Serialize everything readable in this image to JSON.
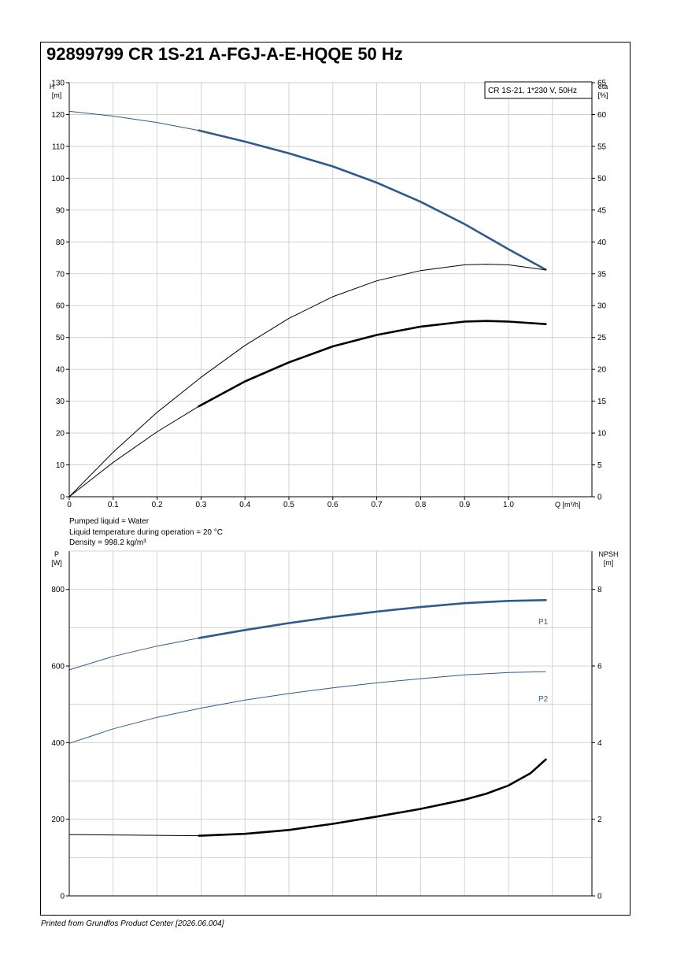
{
  "title": "92899799 CR 1S-21 A-FGJ-A-E-HQQE 50 Hz",
  "footer": "Printed from Grundfos Product Center [2026.06.004]",
  "liquid_info": [
    "Pumped liquid = Water",
    "Liquid temperature during operation = 20 °C",
    "Density = 998.2 kg/m³"
  ],
  "colors": {
    "blue": "#2f5a8c",
    "black": "#000000",
    "grid": "#c8c8c8"
  },
  "chart_data": [
    {
      "type": "line",
      "legend_box": "CR 1S-21, 1*230 V, 50Hz",
      "legend_placement": "top-right",
      "xlabel": "Q [m³/h]",
      "ylabel_left": [
        "H",
        "[m]"
      ],
      "ylabel_right": [
        "eta",
        "[%]"
      ],
      "xlim": [
        0,
        1.2
      ],
      "ylim_left": [
        0,
        130
      ],
      "ylim_right": [
        0,
        65
      ],
      "x_ticks": [
        "0",
        "0.1",
        "0.2",
        "0.3",
        "0.4",
        "0.5",
        "0.6",
        "0.7",
        "0.8",
        "0.9",
        "1.0"
      ],
      "y_ticks_left": [
        "0",
        "10",
        "20",
        "30",
        "40",
        "50",
        "60",
        "70",
        "80",
        "90",
        "100",
        "110",
        "120",
        "130"
      ],
      "y_ticks_right": [
        "0",
        "5",
        "10",
        "15",
        "20",
        "25",
        "30",
        "35",
        "40",
        "45",
        "50",
        "55",
        "60",
        "65"
      ],
      "grid": true,
      "series": [
        {
          "axis": "left",
          "color": "#2f5a8c",
          "duty_from": 0.295,
          "x": [
            0,
            0.1,
            0.2,
            0.295,
            0.4,
            0.5,
            0.6,
            0.7,
            0.8,
            0.9,
            1.0,
            1.085
          ],
          "y": [
            121,
            119.5,
            117.5,
            115,
            111.5,
            107.8,
            103.7,
            98.6,
            92.6,
            85.6,
            77.7,
            71.3
          ]
        },
        {
          "axis": "right",
          "color": "#000000",
          "duty_from": 0.295,
          "x": [
            0,
            0.1,
            0.2,
            0.295,
            0.4,
            0.5,
            0.6,
            0.7,
            0.8,
            0.9,
            0.95,
            1.0,
            1.085
          ],
          "y": [
            0,
            5.4,
            10.2,
            14.2,
            18.1,
            21.1,
            23.6,
            25.4,
            26.7,
            27.5,
            27.6,
            27.5,
            27.1
          ]
        },
        {
          "axis": "left",
          "color": "#000000",
          "duty_from": 1000000000.0,
          "x": [
            0,
            0.1,
            0.2,
            0.3,
            0.4,
            0.5,
            0.6,
            0.7,
            0.8,
            0.9,
            0.95,
            1.0,
            1.085
          ],
          "y": [
            0,
            14,
            26.5,
            37.5,
            47.5,
            56,
            62.8,
            67.8,
            71,
            72.8,
            73,
            72.8,
            71.2
          ]
        }
      ]
    },
    {
      "type": "line",
      "xlim": [
        0,
        1.2
      ],
      "ylim_left": [
        0,
        900
      ],
      "ylim_right": [
        0,
        9
      ],
      "ylabel_left": [
        "P",
        "[W]"
      ],
      "ylabel_right": [
        "NPSH",
        "[m]"
      ],
      "y_ticks_left": [
        "0",
        "200",
        "400",
        "600",
        "800"
      ],
      "y_ticks_right": [
        "0",
        "2",
        "4",
        "6",
        "8"
      ],
      "grid": true,
      "series": [
        {
          "name": "P1",
          "axis": "left",
          "color": "#2f5a8c",
          "duty_from": 0.295,
          "x": [
            0,
            0.1,
            0.2,
            0.295,
            0.4,
            0.5,
            0.6,
            0.7,
            0.8,
            0.9,
            1.0,
            1.085
          ],
          "y": [
            590,
            625,
            652,
            673,
            694,
            712,
            728,
            742,
            754,
            764,
            770,
            772
          ]
        },
        {
          "name": "P2",
          "axis": "left",
          "color": "#2f5a8c",
          "duty_from": 1000000000.0,
          "x": [
            0,
            0.1,
            0.2,
            0.3,
            0.4,
            0.5,
            0.6,
            0.7,
            0.8,
            0.9,
            1.0,
            1.085
          ],
          "y": [
            398,
            436,
            466,
            490,
            511,
            528,
            543,
            556,
            567,
            577,
            583,
            585
          ]
        },
        {
          "axis": "right",
          "color": "#000000",
          "duty_from": 0.295,
          "x": [
            0,
            0.1,
            0.2,
            0.295,
            0.4,
            0.5,
            0.6,
            0.7,
            0.8,
            0.9,
            0.95,
            1.0,
            1.05,
            1.085
          ],
          "y": [
            1.6,
            1.59,
            1.58,
            1.57,
            1.62,
            1.72,
            1.88,
            2.07,
            2.27,
            2.51,
            2.67,
            2.88,
            3.2,
            3.56
          ]
        }
      ]
    }
  ]
}
